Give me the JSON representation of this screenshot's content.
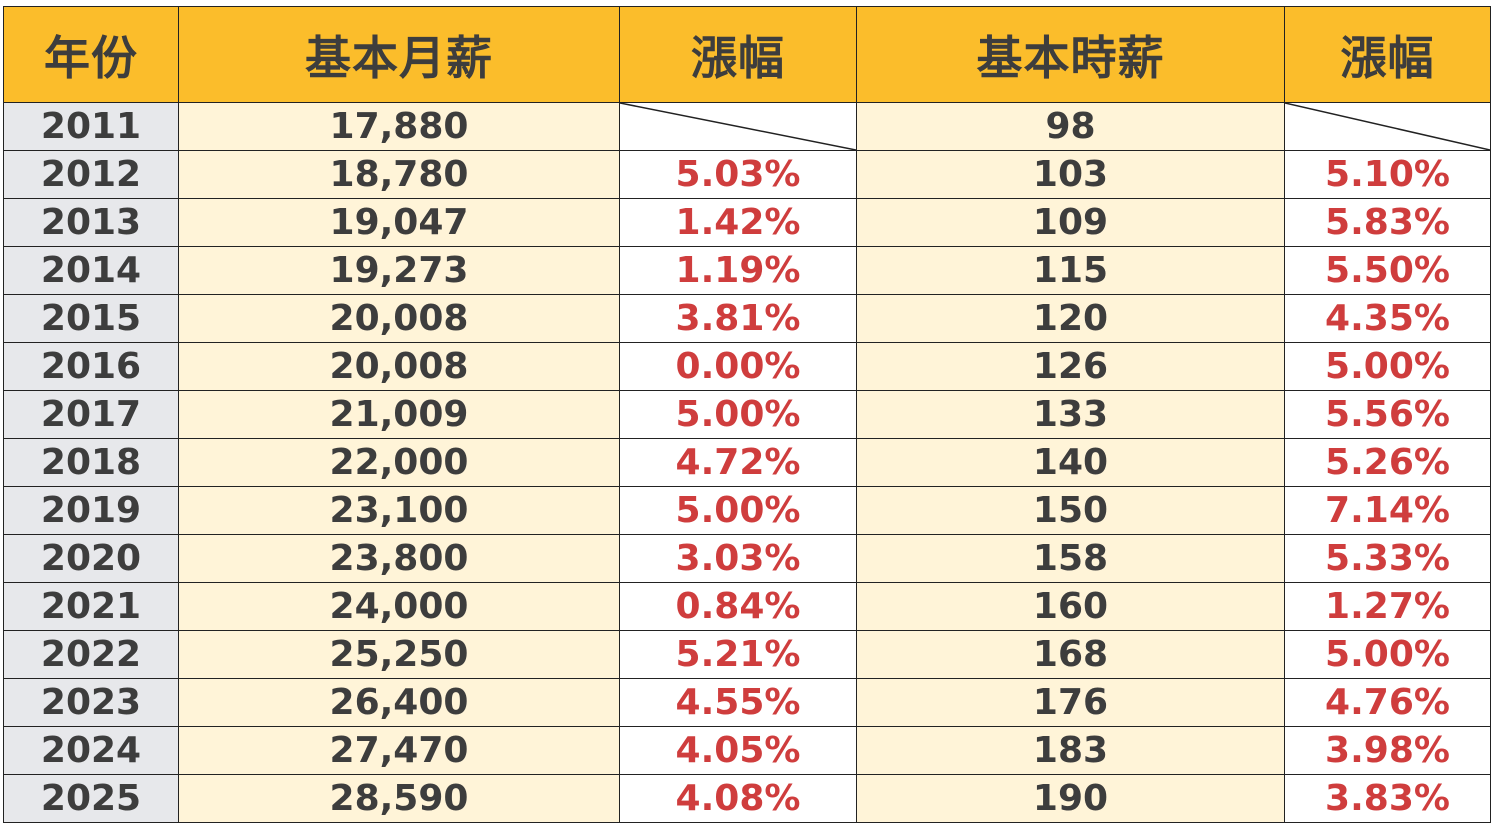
{
  "headers": {
    "year": "年份",
    "monthly": "基本月薪",
    "monthly_growth": "漲幅",
    "hourly": "基本時薪",
    "hourly_growth": "漲幅"
  },
  "rows": [
    {
      "year": "2011",
      "monthly": "17,880",
      "monthly_growth": "",
      "hourly": "98",
      "hourly_growth": ""
    },
    {
      "year": "2012",
      "monthly": "18,780",
      "monthly_growth": "5.03%",
      "hourly": "103",
      "hourly_growth": "5.10%"
    },
    {
      "year": "2013",
      "monthly": "19,047",
      "monthly_growth": "1.42%",
      "hourly": "109",
      "hourly_growth": "5.83%"
    },
    {
      "year": "2014",
      "monthly": "19,273",
      "monthly_growth": "1.19%",
      "hourly": "115",
      "hourly_growth": "5.50%"
    },
    {
      "year": "2015",
      "monthly": "20,008",
      "monthly_growth": "3.81%",
      "hourly": "120",
      "hourly_growth": "4.35%"
    },
    {
      "year": "2016",
      "monthly": "20,008",
      "monthly_growth": "0.00%",
      "hourly": "126",
      "hourly_growth": "5.00%"
    },
    {
      "year": "2017",
      "monthly": "21,009",
      "monthly_growth": "5.00%",
      "hourly": "133",
      "hourly_growth": "5.56%"
    },
    {
      "year": "2018",
      "monthly": "22,000",
      "monthly_growth": "4.72%",
      "hourly": "140",
      "hourly_growth": "5.26%"
    },
    {
      "year": "2019",
      "monthly": "23,100",
      "monthly_growth": "5.00%",
      "hourly": "150",
      "hourly_growth": "7.14%"
    },
    {
      "year": "2020",
      "monthly": "23,800",
      "monthly_growth": "3.03%",
      "hourly": "158",
      "hourly_growth": "5.33%"
    },
    {
      "year": "2021",
      "monthly": "24,000",
      "monthly_growth": "0.84%",
      "hourly": "160",
      "hourly_growth": "1.27%"
    },
    {
      "year": "2022",
      "monthly": "25,250",
      "monthly_growth": "5.21%",
      "hourly": "168",
      "hourly_growth": "5.00%"
    },
    {
      "year": "2023",
      "monthly": "26,400",
      "monthly_growth": "4.55%",
      "hourly": "176",
      "hourly_growth": "4.76%"
    },
    {
      "year": "2024",
      "monthly": "27,470",
      "monthly_growth": "4.05%",
      "hourly": "183",
      "hourly_growth": "3.98%"
    },
    {
      "year": "2025",
      "monthly": "28,590",
      "monthly_growth": "4.08%",
      "hourly": "190",
      "hourly_growth": "3.83%"
    }
  ]
}
